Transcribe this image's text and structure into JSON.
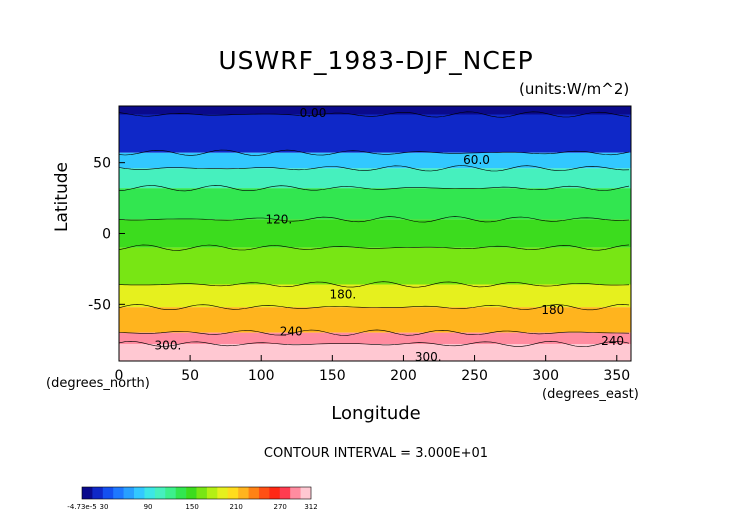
{
  "chart_data": {
    "type": "heatmap",
    "title": "USWRF_1983-DJF_NCEP",
    "units_label": "(units:W/m^2)",
    "xlabel": "Longitude",
    "ylabel": "Latitude",
    "x_unit_note": "(degrees_east)",
    "y_unit_note": "(degrees_north)",
    "contour_interval_text": "CONTOUR INTERVAL = 3.000E+01",
    "xlim": [
      0,
      360
    ],
    "ylim": [
      -90,
      90
    ],
    "x_ticks": [
      0,
      50,
      100,
      150,
      200,
      250,
      300,
      350
    ],
    "y_ticks": [
      50,
      0,
      -50
    ],
    "contour_labels": [
      {
        "text": "0.00",
        "lon": 127,
        "lat": 85
      },
      {
        "text": "60.0",
        "lon": 242,
        "lat": 52
      },
      {
        "text": "120.",
        "lon": 103,
        "lat": 10
      },
      {
        "text": "180.",
        "lon": 148,
        "lat": -43
      },
      {
        "text": "180",
        "lon": 297,
        "lat": -54
      },
      {
        "text": "240",
        "lon": 113,
        "lat": -69
      },
      {
        "text": "300.",
        "lon": 25,
        "lat": -79
      },
      {
        "text": "300.",
        "lon": 208,
        "lat": -87
      },
      {
        "text": "240",
        "lon": 339,
        "lat": -76
      }
    ],
    "latitude_bands": [
      {
        "lat_from": 90,
        "lat_to": 84,
        "value": 0
      },
      {
        "lat_from": 84,
        "lat_to": 57,
        "value": 15
      },
      {
        "lat_from": 57,
        "lat_to": 46,
        "value": 75
      },
      {
        "lat_from": 46,
        "lat_to": 32,
        "value": 105
      },
      {
        "lat_from": 32,
        "lat_to": 10,
        "value": 135
      },
      {
        "lat_from": 10,
        "lat_to": -10,
        "value": 150
      },
      {
        "lat_from": -10,
        "lat_to": -36,
        "value": 165
      },
      {
        "lat_from": -36,
        "lat_to": -52,
        "value": 195
      },
      {
        "lat_from": -52,
        "lat_to": -70,
        "value": 225
      },
      {
        "lat_from": -70,
        "lat_to": -78,
        "value": 285
      },
      {
        "lat_from": -78,
        "lat_to": -90,
        "value": 312
      }
    ],
    "colorbar": {
      "min": -4.73e-05,
      "max": 312,
      "tick_labels": [
        "-4.73e-5",
        "30",
        "90",
        "150",
        "210",
        "270",
        "312"
      ],
      "tick_values": [
        -4.73e-05,
        30,
        90,
        150,
        210,
        270,
        312
      ],
      "colors": [
        "#0a0a8c",
        "#0f28c8",
        "#1450f0",
        "#1e78ff",
        "#28a0ff",
        "#32c8ff",
        "#3ce6e6",
        "#46f0be",
        "#3cf08c",
        "#32e650",
        "#3cdc1e",
        "#78e614",
        "#b4f014",
        "#e6f01e",
        "#ffdc1e",
        "#ffb41e",
        "#ff8214",
        "#ff5014",
        "#ff2814",
        "#ff3c50",
        "#ff8ca0",
        "#ffc8d2"
      ]
    },
    "grid": false
  }
}
